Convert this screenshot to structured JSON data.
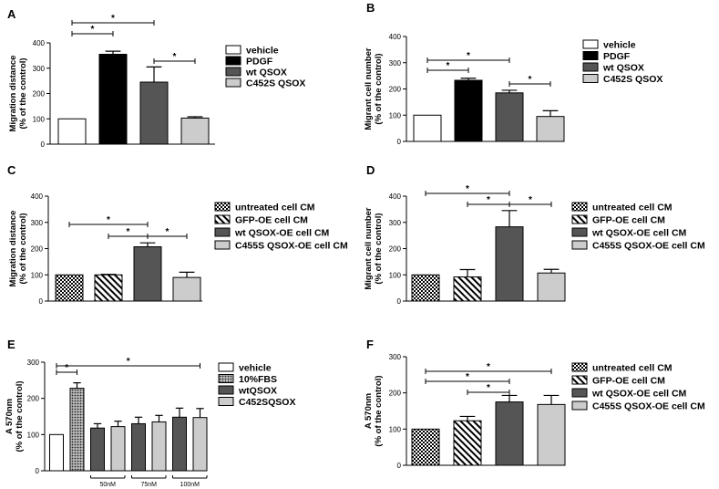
{
  "colors": {
    "white": "#ffffff",
    "black": "#000000",
    "dark_gray": "#555555",
    "light_gray": "#cccccc",
    "axis": "#000000"
  },
  "chart_data": [
    {
      "id": "A",
      "label": "A",
      "type": "bar",
      "ylabel": [
        "Migration distance",
        "(% of the control)"
      ],
      "ylim": [
        0,
        400
      ],
      "yticks": [
        0,
        100,
        200,
        300,
        400
      ],
      "categories": [
        "vehicle",
        "PDGF",
        "wt QSOX",
        "C452S QSOX"
      ],
      "values": [
        100,
        355,
        245,
        103
      ],
      "errors": [
        0,
        12,
        60,
        5
      ],
      "fills": [
        "white",
        "black",
        "dark",
        "light"
      ],
      "legend": [
        "vehicle",
        "PDGF",
        "wt QSOX",
        "C452S QSOX"
      ],
      "significance": [
        {
          "from": 0,
          "to": 1,
          "label": "*"
        },
        {
          "from": 0,
          "to": 2,
          "label": "*"
        },
        {
          "from": 2,
          "to": 3,
          "label": "*"
        }
      ]
    },
    {
      "id": "B",
      "label": "B",
      "type": "bar",
      "ylabel": [
        "Migrant cell number",
        "(% of the control)"
      ],
      "ylim": [
        0,
        400
      ],
      "yticks": [
        0,
        100,
        200,
        300,
        400
      ],
      "categories": [
        "vehicle",
        "PDGF",
        "wt QSOX",
        "C452S QSOX"
      ],
      "values": [
        100,
        233,
        185,
        95
      ],
      "errors": [
        0,
        8,
        10,
        22
      ],
      "fills": [
        "white",
        "black",
        "dark",
        "light"
      ],
      "legend": [
        "vehicle",
        "PDGF",
        "wt QSOX",
        "C452S QSOX"
      ],
      "significance": [
        {
          "from": 0,
          "to": 1,
          "label": "*"
        },
        {
          "from": 0,
          "to": 2,
          "label": "*"
        },
        {
          "from": 2,
          "to": 3,
          "label": "*"
        }
      ]
    },
    {
      "id": "C",
      "label": "C",
      "type": "bar",
      "ylabel": [
        "Migration distance",
        "(% of the control)"
      ],
      "ylim": [
        0,
        400
      ],
      "yticks": [
        0,
        100,
        200,
        300,
        400
      ],
      "categories": [
        "untreated cell CM",
        "GFP-OE cell CM",
        "wt QSOX-OE cell CM",
        "C455S QSOX-OE cell CM"
      ],
      "values": [
        100,
        100,
        207,
        90
      ],
      "errors": [
        0,
        2,
        15,
        20
      ],
      "fills": [
        "check",
        "hatch",
        "dark",
        "light"
      ],
      "legend": [
        "untreated cell CM",
        "GFP-OE cell CM",
        "wt QSOX-OE cell CM",
        "C455S QSOX-OE cell CM"
      ],
      "significance": [
        {
          "from": 0,
          "to": 2,
          "label": "*"
        },
        {
          "from": 1,
          "to": 2,
          "label": "*"
        },
        {
          "from": 2,
          "to": 3,
          "label": "*"
        }
      ]
    },
    {
      "id": "D",
      "label": "D",
      "type": "bar",
      "ylabel": [
        "Migrant cell number",
        "(% of the control)"
      ],
      "ylim": [
        0,
        400
      ],
      "yticks": [
        0,
        100,
        200,
        300,
        400
      ],
      "categories": [
        "untreated cell CM",
        "GFP-OE cell CM",
        "wt QSOX-OE cell CM",
        "C455S QSOX-OE cell CM"
      ],
      "values": [
        100,
        92,
        283,
        107
      ],
      "errors": [
        0,
        28,
        62,
        14
      ],
      "fills": [
        "check",
        "hatch",
        "dark",
        "light"
      ],
      "legend": [
        "untreated cell CM",
        "GFP-OE cell CM",
        "wt QSOX-OE cell CM",
        "C455S QSOX-OE cell CM"
      ],
      "significance": [
        {
          "from": 0,
          "to": 2,
          "label": "*"
        },
        {
          "from": 1,
          "to": 2,
          "label": "*"
        },
        {
          "from": 2,
          "to": 3,
          "label": "*"
        }
      ]
    },
    {
      "id": "E",
      "label": "E",
      "type": "bar",
      "ylabel": [
        "A 570nm",
        "(% of the control)"
      ],
      "ylim": [
        0,
        300
      ],
      "yticks": [
        0,
        100,
        200,
        300
      ],
      "categories": [
        "vehicle",
        "10%FBS",
        "wtQSOX 50nM",
        "C452SQSOX 50nM",
        "wtQSOX 75nM",
        "C452SQSOX 75nM",
        "wtQSOX 100nM",
        "C452SQSOX 100nM"
      ],
      "values": [
        100,
        228,
        118,
        122,
        130,
        135,
        148,
        147
      ],
      "errors": [
        0,
        15,
        12,
        15,
        18,
        18,
        25,
        25
      ],
      "fills": [
        "white",
        "dots",
        "dark",
        "light",
        "dark",
        "light",
        "dark",
        "light"
      ],
      "legend": [
        "vehicle",
        "10%FBS",
        "wtQSOX",
        "C452SQSOX"
      ],
      "groups": [
        {
          "label": "50nM",
          "from": 2,
          "to": 3
        },
        {
          "label": "75nM",
          "from": 4,
          "to": 5
        },
        {
          "label": "100nM",
          "from": 6,
          "to": 7
        }
      ],
      "significance": [
        {
          "from": 0,
          "to": 1,
          "label": "*"
        },
        {
          "from": 0,
          "to": 7,
          "label": "*"
        }
      ]
    },
    {
      "id": "F",
      "label": "F",
      "type": "bar",
      "ylabel": [
        "A 570nm",
        "(% of the control)"
      ],
      "ylim": [
        0,
        300
      ],
      "yticks": [
        0,
        100,
        200,
        300
      ],
      "categories": [
        "untreated cell CM",
        "GFP-OE cell CM",
        "wt QSOX-OE cell CM",
        "C455S QSOX-OE cell CM"
      ],
      "values": [
        100,
        123,
        175,
        168
      ],
      "errors": [
        0,
        12,
        18,
        25
      ],
      "fills": [
        "check",
        "hatch",
        "dark",
        "light"
      ],
      "legend": [
        "untreated cell CM",
        "GFP-OE cell CM",
        "wt QSOX-OE cell CM",
        "C455S QSOX-OE cell CM"
      ],
      "significance": [
        {
          "from": 0,
          "to": 3,
          "label": "*"
        },
        {
          "from": 0,
          "to": 2,
          "label": "*"
        },
        {
          "from": 1,
          "to": 2,
          "label": "*"
        }
      ]
    }
  ]
}
